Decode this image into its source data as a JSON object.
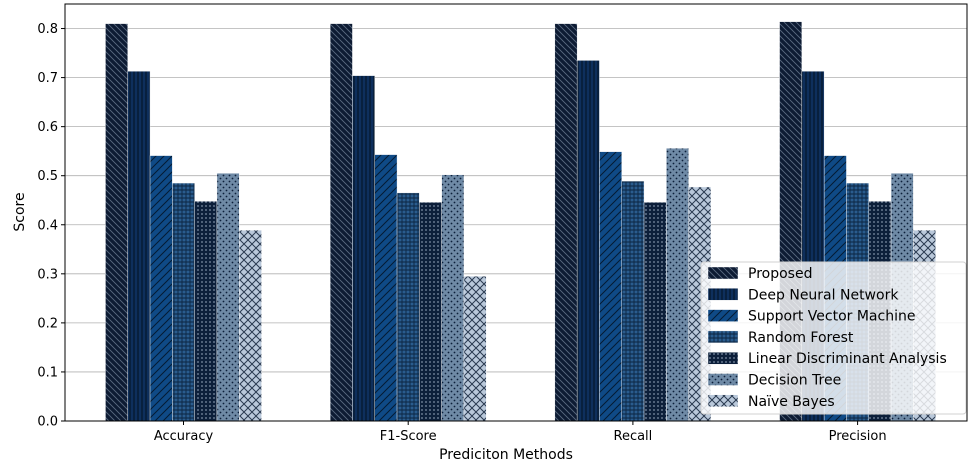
{
  "chart_data": {
    "type": "bar",
    "title": "",
    "xlabel": "Prediciton Methods",
    "ylabel": "Score",
    "ylim": [
      0,
      0.85
    ],
    "yticks": [
      0.0,
      0.1,
      0.2,
      0.3,
      0.4,
      0.5,
      0.6,
      0.7,
      0.8
    ],
    "grid": "horizontal",
    "legend_position": "bottom-right",
    "categories": [
      "Accuracy",
      "F1-Score",
      "Recall",
      "Precision"
    ],
    "series": [
      {
        "name": "Proposed",
        "values": [
          0.81,
          0.81,
          0.81,
          0.814
        ],
        "color": "#0d1b33",
        "hatch": "backslash"
      },
      {
        "name": "Deep Neural Network",
        "values": [
          0.713,
          0.704,
          0.735,
          0.713
        ],
        "color": "#0e2f5c",
        "hatch": "vertical"
      },
      {
        "name": "Support Vector Machine",
        "values": [
          0.541,
          0.543,
          0.549,
          0.541
        ],
        "color": "#0f4a86",
        "hatch": "slash"
      },
      {
        "name": "Random Forest",
        "values": [
          0.485,
          0.465,
          0.489,
          0.485
        ],
        "color": "#2a5c8e",
        "hatch": "grid"
      },
      {
        "name": "Linear Discriminant Analysis",
        "values": [
          0.448,
          0.446,
          0.446,
          0.448
        ],
        "color": "#0c1f3a",
        "hatch": "dots-dense"
      },
      {
        "name": "Decision Tree",
        "values": [
          0.505,
          0.502,
          0.556,
          0.505
        ],
        "color": "#6f8aa6",
        "hatch": "dots"
      },
      {
        "name": "Naïve Bayes",
        "values": [
          0.389,
          0.295,
          0.477,
          0.389
        ],
        "color": "#b9c8da",
        "hatch": "crosshatch"
      }
    ]
  }
}
